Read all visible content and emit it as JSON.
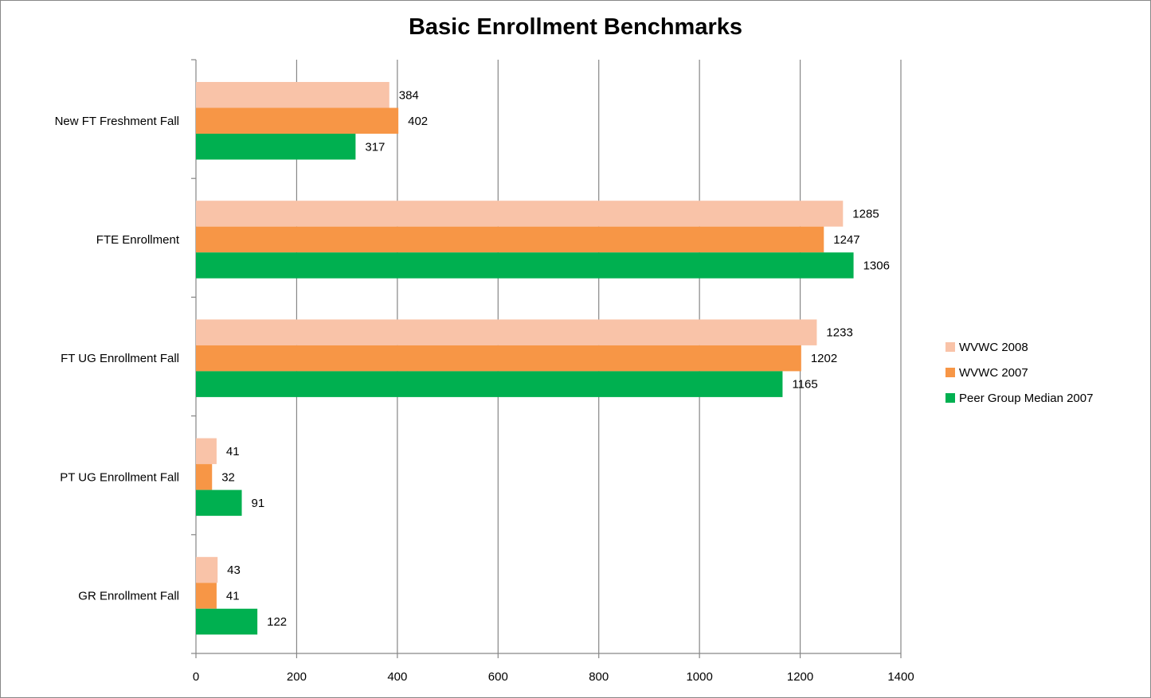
{
  "chart_data": {
    "type": "bar",
    "orientation": "horizontal",
    "title": "Basic Enrollment Benchmarks",
    "xlabel": "",
    "ylabel": "",
    "categories": [
      "New FT Freshment Fall",
      "FTE Enrollment",
      "FT UG Enrollment Fall",
      "PT UG Enrollment Fall",
      "GR Enrollment Fall"
    ],
    "series": [
      {
        "name": "WVWC 2008",
        "color": "#F9C3A8",
        "values": [
          384,
          1285,
          1233,
          41,
          43
        ]
      },
      {
        "name": "WVWC 2007",
        "color": "#F79646",
        "values": [
          402,
          1247,
          1202,
          32,
          41
        ]
      },
      {
        "name": "Peer Group Median 2007",
        "color": "#00B050",
        "values": [
          317,
          1306,
          1165,
          91,
          122
        ]
      }
    ],
    "xlim": [
      0,
      1400
    ],
    "xticks": [
      "0",
      "200",
      "400",
      "600",
      "800",
      "1000",
      "1200",
      "1400"
    ],
    "grid": true,
    "legend_position": "right",
    "data_labels": true
  }
}
